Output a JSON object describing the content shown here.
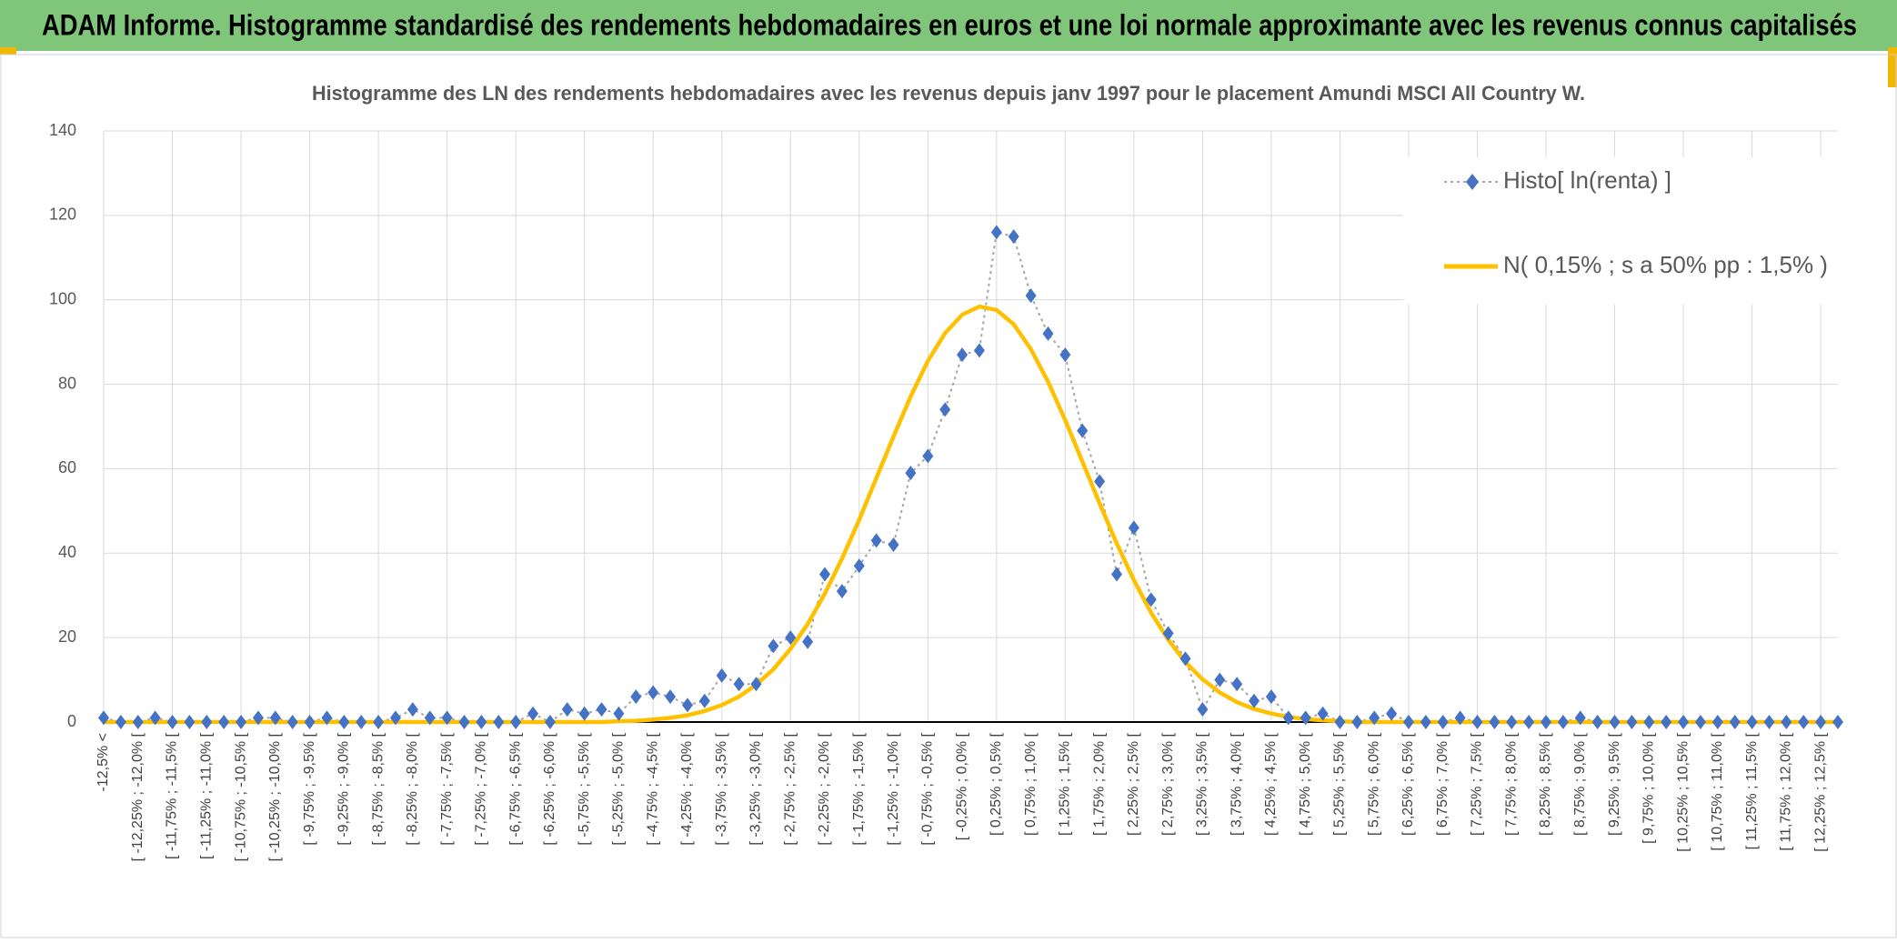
{
  "header": {
    "title": "ADAM Informe. Histogramme standardisé des rendements hebdomadaires en euros et une loi normale approximante avec les revenus connus capitalisés"
  },
  "chart_data": {
    "type": "line",
    "title": "Histogramme des LN des rendements hebdomadaires avec les revenus depuis janv 1997 pour le placement Amundi MSCI All Country W.",
    "categories": [
      "-12,5% <",
      null,
      "[ -12,25% ; -12,0% [",
      null,
      "[ -11,75% ; -11,5% [",
      null,
      "[ -11,25% ; -11,0% [",
      null,
      "[ -10,75% ; -10,5% [",
      null,
      "[ -10,25% ; -10,0% [",
      null,
      "[ -9,75% ; -9,5% [",
      null,
      "[ -9,25% ; -9,0% [",
      null,
      "[ -8,75% ; -8,5% [",
      null,
      "[ -8,25% ; -8,0% [",
      null,
      "[ -7,75% ; -7,5% [",
      null,
      "[ -7,25% ; -7,0% [",
      null,
      "[ -6,75% ; -6,5% [",
      null,
      "[ -6,25% ; -6,0% [",
      null,
      "[ -5,75% ; -5,5% [",
      null,
      "[ -5,25% ; -5,0% [",
      null,
      "[ -4,75% ; -4,5% [",
      null,
      "[ -4,25% ; -4,0% [",
      null,
      "[ -3,75% ; -3,5% [",
      null,
      "[ -3,25% ; -3,0% [",
      null,
      "[ -2,75% ; -2,5% [",
      null,
      "[ -2,25% ; -2,0% [",
      null,
      "[ -1,75% ; -1,5% [",
      null,
      "[ -1,25% ; -1,0% [",
      null,
      "[ -0,75% ; -0,5% [",
      null,
      "[ -0,25% ; 0,0% [",
      null,
      "[ 0,25% ; 0,5% [",
      null,
      "[ 0,75% ; 1,0% [",
      null,
      "[ 1,25% ; 1,5% [",
      null,
      "[ 1,75% ; 2,0% [",
      null,
      "[ 2,25% ; 2,5% [",
      null,
      "[ 2,75% ; 3,0% [",
      null,
      "[ 3,25% ; 3,5% [",
      null,
      "[ 3,75% ; 4,0% [",
      null,
      "[ 4,25% ; 4,5% [",
      null,
      "[ 4,75% ; 5,0% [",
      null,
      "[ 5,25% ; 5,5% [",
      null,
      "[ 5,75% ; 6,0% [",
      null,
      "[ 6,25% ; 6,5% [",
      null,
      "[ 6,75% ; 7,0% [",
      null,
      "[ 7,25% ; 7,5% [",
      null,
      "[ 7,75% ; 8,0% [",
      null,
      "[ 8,25% ; 8,5% [",
      null,
      "[ 8,75% ; 9,0% [",
      null,
      "[ 9,25% ; 9,5% [",
      null,
      "[ 9,75% ; 10,0% [",
      null,
      "[ 10,25% ; 10,5% [",
      null,
      "[ 10,75% ; 11,0% [",
      null,
      "[ 11,25% ; 11,5% [",
      null,
      "[ 11,75% ; 12,0% [",
      null,
      "[ 12,25% ; 12,5% [",
      null
    ],
    "series": [
      {
        "name": "Histo[ ln(renta) ]",
        "color": "#4472c4",
        "line_color": "#a5a5a5",
        "line_style": "dotted",
        "marker": "diamond",
        "values": [
          1,
          0,
          0,
          1,
          0,
          0,
          0,
          0,
          0,
          1,
          1,
          0,
          0,
          1,
          0,
          0,
          0,
          1,
          3,
          1,
          1,
          0,
          0,
          0,
          0,
          2,
          0,
          3,
          2,
          3,
          2,
          6,
          7,
          6,
          4,
          5,
          11,
          9,
          9,
          18,
          20,
          19,
          35,
          31,
          37,
          43,
          42,
          59,
          63,
          74,
          87,
          88,
          116,
          115,
          101,
          92,
          87,
          69,
          57,
          35,
          46,
          29,
          21,
          15,
          3,
          10,
          9,
          5,
          6,
          1,
          1,
          2,
          0,
          0,
          1,
          2,
          0,
          0,
          0,
          1,
          0,
          0,
          0,
          0,
          0,
          0,
          1,
          0,
          0,
          0,
          0,
          0,
          0,
          0,
          0,
          0,
          0,
          0,
          0,
          0,
          0,
          0
        ]
      },
      {
        "name": "N( 0,15% ; s a 50% pp : 1,5% )",
        "color": "#ffc000",
        "line_color": "#ffc000",
        "line_style": "solid",
        "values": [
          0,
          0,
          0,
          0,
          0,
          0,
          0,
          0,
          0,
          0,
          0,
          0,
          0,
          0,
          0,
          0,
          0,
          0,
          0,
          0,
          0,
          0,
          0,
          0,
          0,
          0,
          0,
          0,
          0,
          0,
          0.2,
          0.3,
          0.6,
          1.0,
          1.6,
          2.6,
          4.0,
          6.0,
          8.8,
          12.5,
          17.3,
          23.2,
          30.4,
          38.7,
          47.9,
          57.8,
          67.6,
          77.1,
          85.5,
          92.1,
          96.5,
          98.4,
          97.6,
          94.2,
          88.3,
          80.6,
          71.5,
          61.7,
          51.8,
          42.3,
          33.6,
          25.9,
          19.5,
          14.2,
          10.1,
          7.0,
          4.7,
          3.1,
          2.0,
          1.2,
          0.7,
          0.4,
          0.2,
          0,
          0,
          0,
          0,
          0,
          0,
          0,
          0,
          0,
          0,
          0,
          0,
          0,
          0,
          0,
          0,
          0,
          0,
          0,
          0,
          0,
          0,
          0,
          0,
          0,
          0,
          0,
          0,
          0
        ]
      }
    ],
    "ylim": [
      0,
      140
    ],
    "yticks": [
      0,
      20,
      40,
      60,
      80,
      100,
      120,
      140
    ],
    "grid": true,
    "legend": "upper right"
  }
}
